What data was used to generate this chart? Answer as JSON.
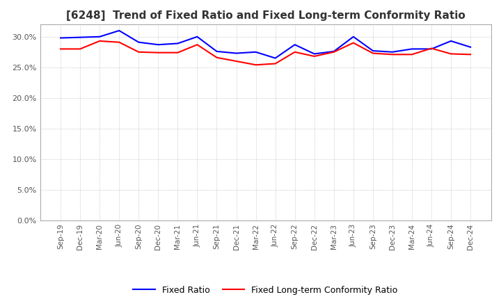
{
  "title": "[6248]  Trend of Fixed Ratio and Fixed Long-term Conformity Ratio",
  "title_fontsize": 11,
  "ylim": [
    0.0,
    0.32
  ],
  "yticks": [
    0.0,
    0.05,
    0.1,
    0.15,
    0.2,
    0.25,
    0.3
  ],
  "background_color": "#ffffff",
  "plot_bg_color": "#ffffff",
  "legend_labels": [
    "Fixed Ratio",
    "Fixed Long-term Conformity Ratio"
  ],
  "legend_colors": [
    "#0000ff",
    "#ff0000"
  ],
  "x_labels": [
    "Sep-19",
    "Dec-19",
    "Mar-20",
    "Jun-20",
    "Sep-20",
    "Dec-20",
    "Mar-21",
    "Jun-21",
    "Sep-21",
    "Dec-21",
    "Mar-22",
    "Jun-22",
    "Sep-22",
    "Dec-22",
    "Mar-23",
    "Jun-23",
    "Sep-23",
    "Dec-23",
    "Mar-24",
    "Jun-24",
    "Sep-24",
    "Dec-24"
  ],
  "fixed_ratio": [
    0.298,
    0.299,
    0.3,
    0.31,
    0.291,
    0.287,
    0.289,
    0.3,
    0.276,
    0.273,
    0.275,
    0.265,
    0.287,
    0.272,
    0.276,
    0.3,
    0.277,
    0.275,
    0.28,
    0.28,
    0.293,
    0.283
  ],
  "fixed_lt_ratio": [
    0.28,
    0.28,
    0.293,
    0.291,
    0.275,
    0.274,
    0.274,
    0.287,
    0.266,
    0.26,
    0.254,
    0.256,
    0.275,
    0.268,
    0.275,
    0.29,
    0.273,
    0.271,
    0.271,
    0.281,
    0.272,
    0.271
  ]
}
